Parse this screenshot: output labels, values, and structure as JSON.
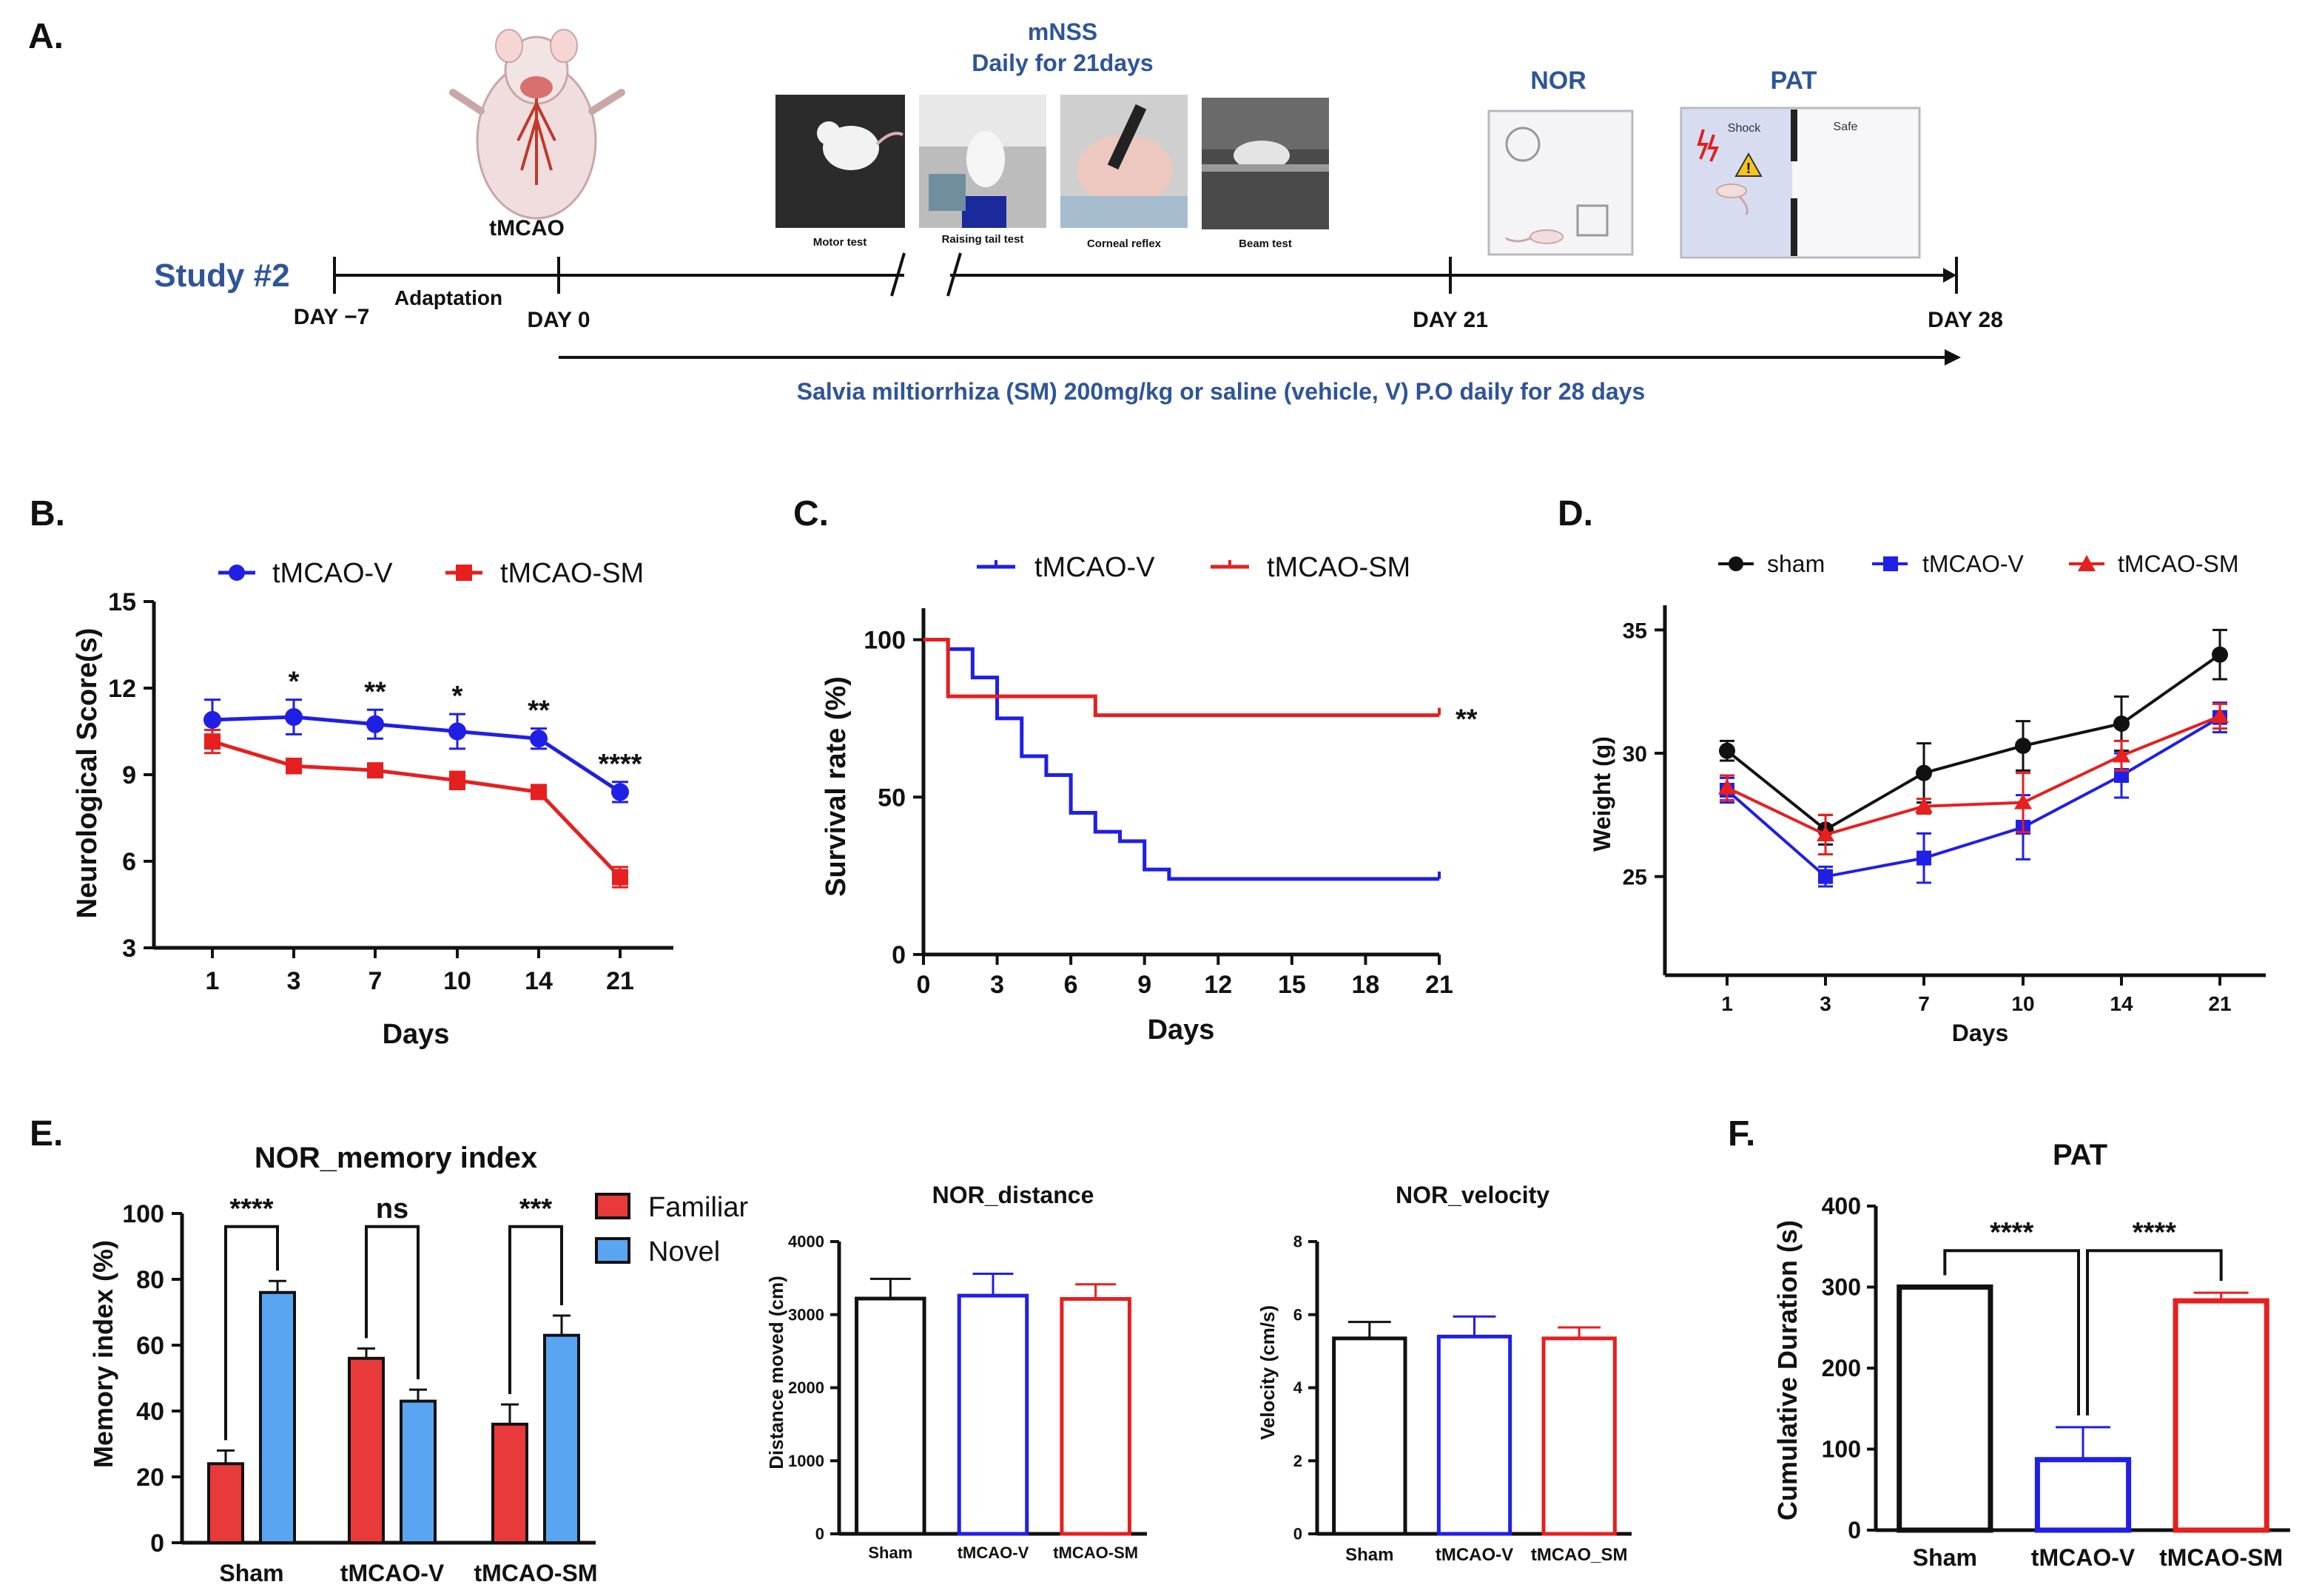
{
  "panel_labels": {
    "a": "A.",
    "b": "B.",
    "c": "C.",
    "d": "D.",
    "e": "E.",
    "f": "F."
  },
  "timeline": {
    "study": "Study #2",
    "day_m7": "DAY −7",
    "adaptation": "Adaptation",
    "day0": "DAY 0",
    "tmcao": "tMCAO",
    "day21": "DAY 21",
    "day28": "DAY 28",
    "mnss_title": "mNSS",
    "mnss_sub": "Daily for 21days",
    "photos": [
      "Motor test",
      "Raising tail test",
      "Corneal reflex",
      "Beam test"
    ],
    "nor": "NOR",
    "pat": "PAT",
    "shock": "Shock",
    "safe": "Safe",
    "treatment": "Salvia miltiorrhiza (SM) 200mg/kg or saline (vehicle, V) P.O daily for 28 days",
    "colors": {
      "text_blue": "#2f5597"
    }
  },
  "chart_data": [
    {
      "id": "B",
      "type": "line",
      "categories": [
        "1",
        "3",
        "7",
        "10",
        "14",
        "21"
      ],
      "series": [
        {
          "name": "tMCAO-V",
          "color": "#1f1fe6",
          "values": [
            10.9,
            11.0,
            10.75,
            10.5,
            10.25,
            8.4
          ],
          "err": [
            0.7,
            0.6,
            0.5,
            0.6,
            0.35,
            0.35
          ]
        },
        {
          "name": "tMCAO-SM",
          "color": "#e61f1f",
          "values": [
            10.15,
            9.3,
            9.15,
            8.8,
            8.4,
            5.45
          ],
          "err": [
            0.4,
            0.25,
            0.2,
            0.3,
            0.2,
            0.35
          ]
        }
      ],
      "ylabel": "Neurological Score(s)",
      "xlabel": "Days",
      "ylim": [
        3,
        15
      ],
      "yticks": [
        "3",
        "6",
        "9",
        "12",
        "15"
      ],
      "annotations": [
        "",
        "*",
        "**",
        "*",
        "**",
        "****"
      ]
    },
    {
      "id": "C",
      "type": "line",
      "xticks": [
        "0",
        "3",
        "6",
        "9",
        "12",
        "15",
        "18",
        "21"
      ],
      "yticks": [
        "0",
        "50",
        "100"
      ],
      "xlim": [
        0,
        21
      ],
      "ylim": [
        0,
        110
      ],
      "series": [
        {
          "name": "tMCAO-V",
          "color": "#1f1fe6",
          "steps": [
            [
              0,
              100
            ],
            [
              1,
              100
            ],
            [
              1,
              97
            ],
            [
              2,
              97
            ],
            [
              2,
              88
            ],
            [
              3,
              88
            ],
            [
              3,
              75
            ],
            [
              4,
              75
            ],
            [
              4,
              63
            ],
            [
              5,
              63
            ],
            [
              5,
              57
            ],
            [
              6,
              57
            ],
            [
              6,
              45
            ],
            [
              7,
              45
            ],
            [
              7,
              39
            ],
            [
              8,
              39
            ],
            [
              8,
              36
            ],
            [
              9,
              36
            ],
            [
              9,
              27
            ],
            [
              10,
              27
            ],
            [
              10,
              24
            ],
            [
              21,
              24
            ]
          ]
        },
        {
          "name": "tMCAO-SM",
          "color": "#e61f1f",
          "steps": [
            [
              0,
              100
            ],
            [
              1,
              100
            ],
            [
              1,
              82
            ],
            [
              7,
              82
            ],
            [
              7,
              76
            ],
            [
              21,
              76
            ]
          ]
        }
      ],
      "ylabel": "Survival rate (%)",
      "xlabel": "Days",
      "annotation": "**"
    },
    {
      "id": "D",
      "type": "line",
      "categories": [
        "1",
        "3",
        "7",
        "10",
        "14",
        "21"
      ],
      "series": [
        {
          "name": "sham",
          "color": "#111111",
          "values": [
            30.1,
            26.9,
            29.2,
            30.3,
            31.2,
            34.0
          ],
          "err": [
            0.4,
            0.6,
            1.2,
            1.0,
            1.1,
            1.0
          ]
        },
        {
          "name": "tMCAO-V",
          "color": "#1f1fe6",
          "values": [
            28.5,
            25.0,
            25.75,
            27.0,
            29.1,
            31.45
          ],
          "err": [
            0.5,
            0.4,
            1.0,
            1.3,
            0.9,
            0.6
          ]
        },
        {
          "name": "tMCAO-SM",
          "color": "#e61f1f",
          "values": [
            28.6,
            26.7,
            27.85,
            28.0,
            29.9,
            31.5
          ],
          "err": [
            0.5,
            0.8,
            0.3,
            1.2,
            0.6,
            0.5
          ]
        }
      ],
      "ylabel": "Weight (g)",
      "xlabel": "Days",
      "ylim": [
        21,
        36
      ],
      "yticks": [
        "25",
        "30",
        "35"
      ]
    },
    {
      "id": "E1",
      "type": "bar",
      "title": "NOR_memory index",
      "categories": [
        "Sham",
        "tMCAO-V",
        "tMCAO-SM"
      ],
      "series": [
        {
          "name": "Familiar",
          "color": "#e83a3a",
          "values": [
            24,
            56,
            36
          ],
          "err": [
            4,
            3,
            6
          ]
        },
        {
          "name": "Novel",
          "color": "#5aa5f2",
          "values": [
            76,
            43,
            63
          ],
          "err": [
            3.5,
            3.5,
            6
          ]
        }
      ],
      "ylabel": "Memory index (%)",
      "ylim": [
        0,
        100
      ],
      "yticks": [
        "0",
        "20",
        "40",
        "60",
        "80",
        "100"
      ],
      "significance": [
        "****",
        "ns",
        "***"
      ]
    },
    {
      "id": "E2",
      "type": "bar",
      "title": "NOR_distance",
      "categories": [
        "Sham",
        "tMCAO-V",
        "tMCAO-SM"
      ],
      "values": [
        3220,
        3260,
        3215
      ],
      "err": [
        270,
        300,
        200
      ],
      "colors": [
        "#111111",
        "#1f1fe6",
        "#e61f1f"
      ],
      "ylabel": "Distance moved (cm)",
      "ylim": [
        0,
        4000
      ],
      "yticks": [
        "0",
        "1000",
        "2000",
        "3000",
        "4000"
      ]
    },
    {
      "id": "E3",
      "type": "bar",
      "title": "NOR_velocity",
      "categories": [
        "Sham",
        "tMCAO-V",
        "tMCAO_SM"
      ],
      "values": [
        5.35,
        5.4,
        5.35
      ],
      "err": [
        0.45,
        0.55,
        0.3
      ],
      "colors": [
        "#111111",
        "#1f1fe6",
        "#e61f1f"
      ],
      "ylabel": "Velocity (cm/s)",
      "ylim": [
        0,
        8
      ],
      "yticks": [
        "0",
        "2",
        "4",
        "6",
        "8"
      ]
    },
    {
      "id": "F",
      "type": "bar",
      "title": "PAT",
      "categories": [
        "Sham",
        "tMCAO-V",
        "tMCAO-SM"
      ],
      "values": [
        300,
        87,
        283
      ],
      "err": [
        0,
        40,
        10
      ],
      "colors": [
        "#111111",
        "#1f1fe6",
        "#e61f1f"
      ],
      "ylabel": "Cumulative Duration (s)",
      "ylim": [
        0,
        400
      ],
      "yticks": [
        "0",
        "100",
        "200",
        "300",
        "400"
      ],
      "significance": [
        "****",
        "****"
      ]
    }
  ]
}
